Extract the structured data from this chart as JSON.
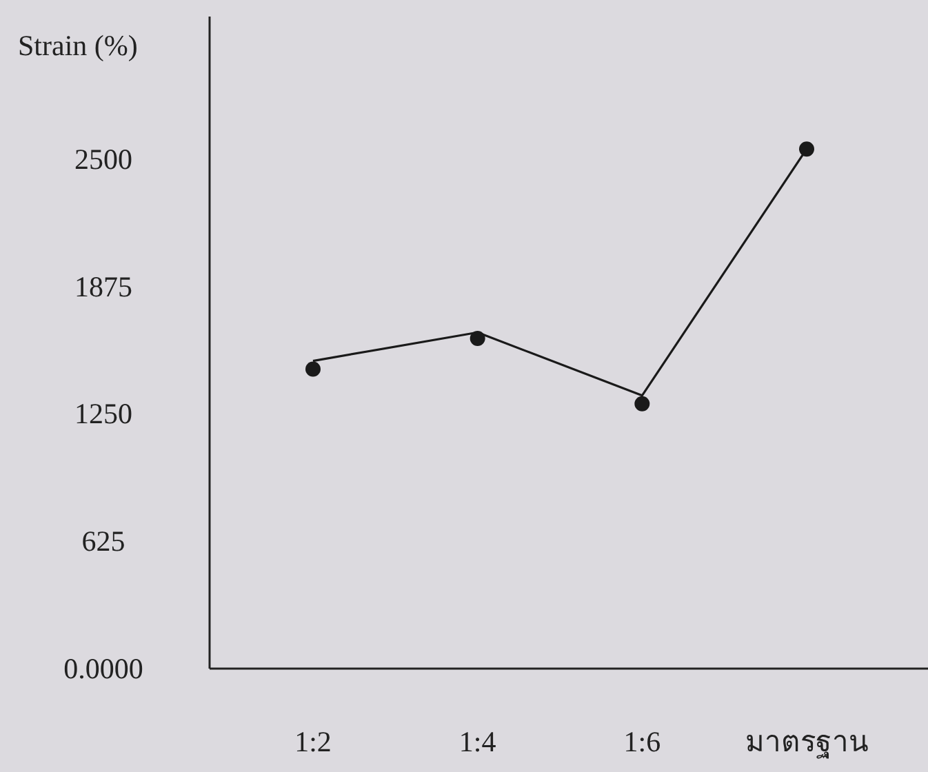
{
  "chart_data": {
    "type": "line",
    "ylabel": "Strain (%)",
    "categories": [
      "1:2",
      "1:4",
      "1:6",
      "มาตรฐาน"
    ],
    "series": [
      {
        "color": "#1a1a1a",
        "values": [
          1510,
          1650,
          1340,
          2550
        ],
        "marker": "none"
      },
      {
        "type": "scatter",
        "color": "#1a1a1a",
        "values": [
          1470,
          1620,
          1300,
          2550
        ],
        "marker": "circle"
      }
    ],
    "ylim": [
      0,
      3200
    ],
    "yticks": [
      {
        "value": 0,
        "label": "0.0000"
      },
      625,
      1250,
      1875,
      2500
    ],
    "grid": false
  }
}
